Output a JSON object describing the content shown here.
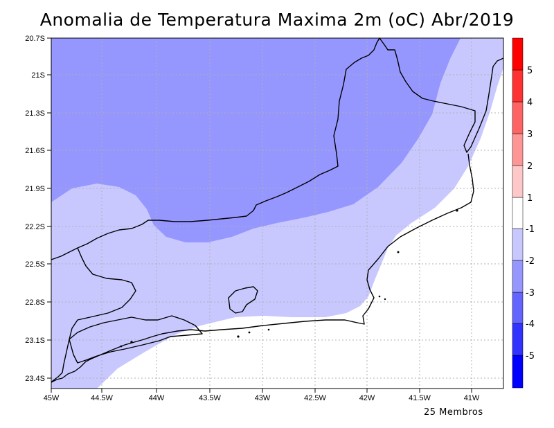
{
  "title": "Anomalia de Temperatura Maxima 2m (oC) Abr/2019",
  "footnote": "25 Membros",
  "lat_labels": [
    "20.7S",
    "21S",
    "21.3S",
    "21.6S",
    "21.9S",
    "22.2S",
    "22.5S",
    "22.8S",
    "23.1S",
    "23.4S"
  ],
  "lon_labels": [
    "45W",
    "44.5W",
    "44W",
    "43.5W",
    "43W",
    "42.5W",
    "42W",
    "41.5W",
    "41W"
  ],
  "colorbar": {
    "levels": [
      "-5",
      "-4",
      "-3",
      "-2",
      "-1",
      "1",
      "2",
      "3",
      "4",
      "5"
    ],
    "colors": [
      "#0000ff",
      "#3333ff",
      "#6464ff",
      "#9696ff",
      "#c8c8ff",
      "#ffffff",
      "#ffc8c8",
      "#ff9696",
      "#ff6464",
      "#ff3232",
      "#ff0000"
    ]
  },
  "colors": {
    "band_minus3_to_minus2": "#9696ff",
    "band_minus2_to_minus1": "#c8c8ff",
    "band_minus1_to_1": "#ffffff",
    "grid": "#b0b0b0",
    "coastline": "#000000"
  },
  "extent": {
    "lon": [
      -45,
      -40.75
    ],
    "lat": [
      -23.55,
      -20.7
    ]
  }
}
